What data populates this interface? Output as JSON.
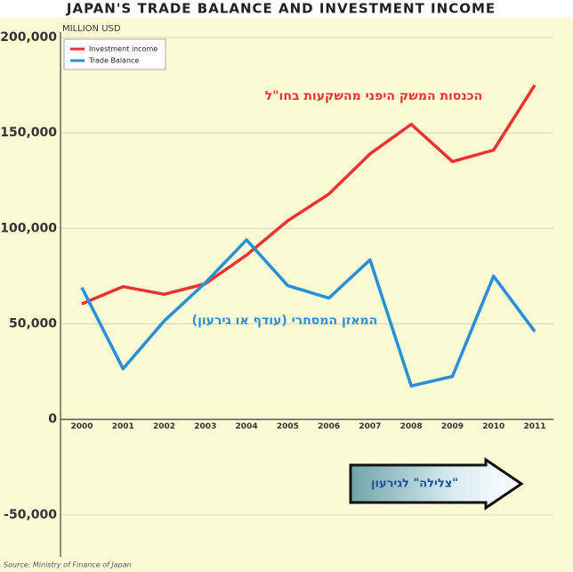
{
  "chart_data": {
    "type": "line",
    "title": "JAPAN'S TRADE BALANCE AND INVESTMENT INCOME",
    "y_label": "MILLION USD",
    "source": "Source: Ministry of Finance of Japan",
    "categories": [
      "2000",
      "2001",
      "2002",
      "2003",
      "2004",
      "2005",
      "2006",
      "2007",
      "2008",
      "2009",
      "2010",
      "2011"
    ],
    "series": [
      {
        "name": "Investment income",
        "color": "#e8332f",
        "values": [
          60500,
          69500,
          65500,
          71000,
          86000,
          104000,
          118000,
          139000,
          154500,
          135000,
          141000,
          175000
        ]
      },
      {
        "name": "Trade Balance",
        "color": "#2a8fd6",
        "values": [
          69000,
          26500,
          51500,
          71500,
          94000,
          70000,
          63500,
          83500,
          17500,
          22500,
          75000,
          46000
        ]
      }
    ],
    "ylim": [
      -72000,
      200000
    ],
    "yticks": [
      {
        "value": -50000,
        "label": "-50,000"
      },
      0,
      {
        "value": 50000,
        "label": "50,000"
      },
      {
        "value": 100000,
        "label": "100,000"
      },
      {
        "value": 150000,
        "label": "150,000"
      },
      {
        "value": 200000,
        "label": "200,000"
      }
    ],
    "grid": true,
    "legend": "upper-left",
    "annotations": [
      {
        "text": "הכנסות המשק היפני מהשקעות בחו\"ל",
        "color": "#e8332f"
      },
      {
        "text": "המאזן המסחרי (עודף או גירעון)",
        "color": "#2a8fd6"
      },
      {
        "text": "\"צלילה\"  לגירעון",
        "color": "#1f4f9a"
      }
    ]
  }
}
